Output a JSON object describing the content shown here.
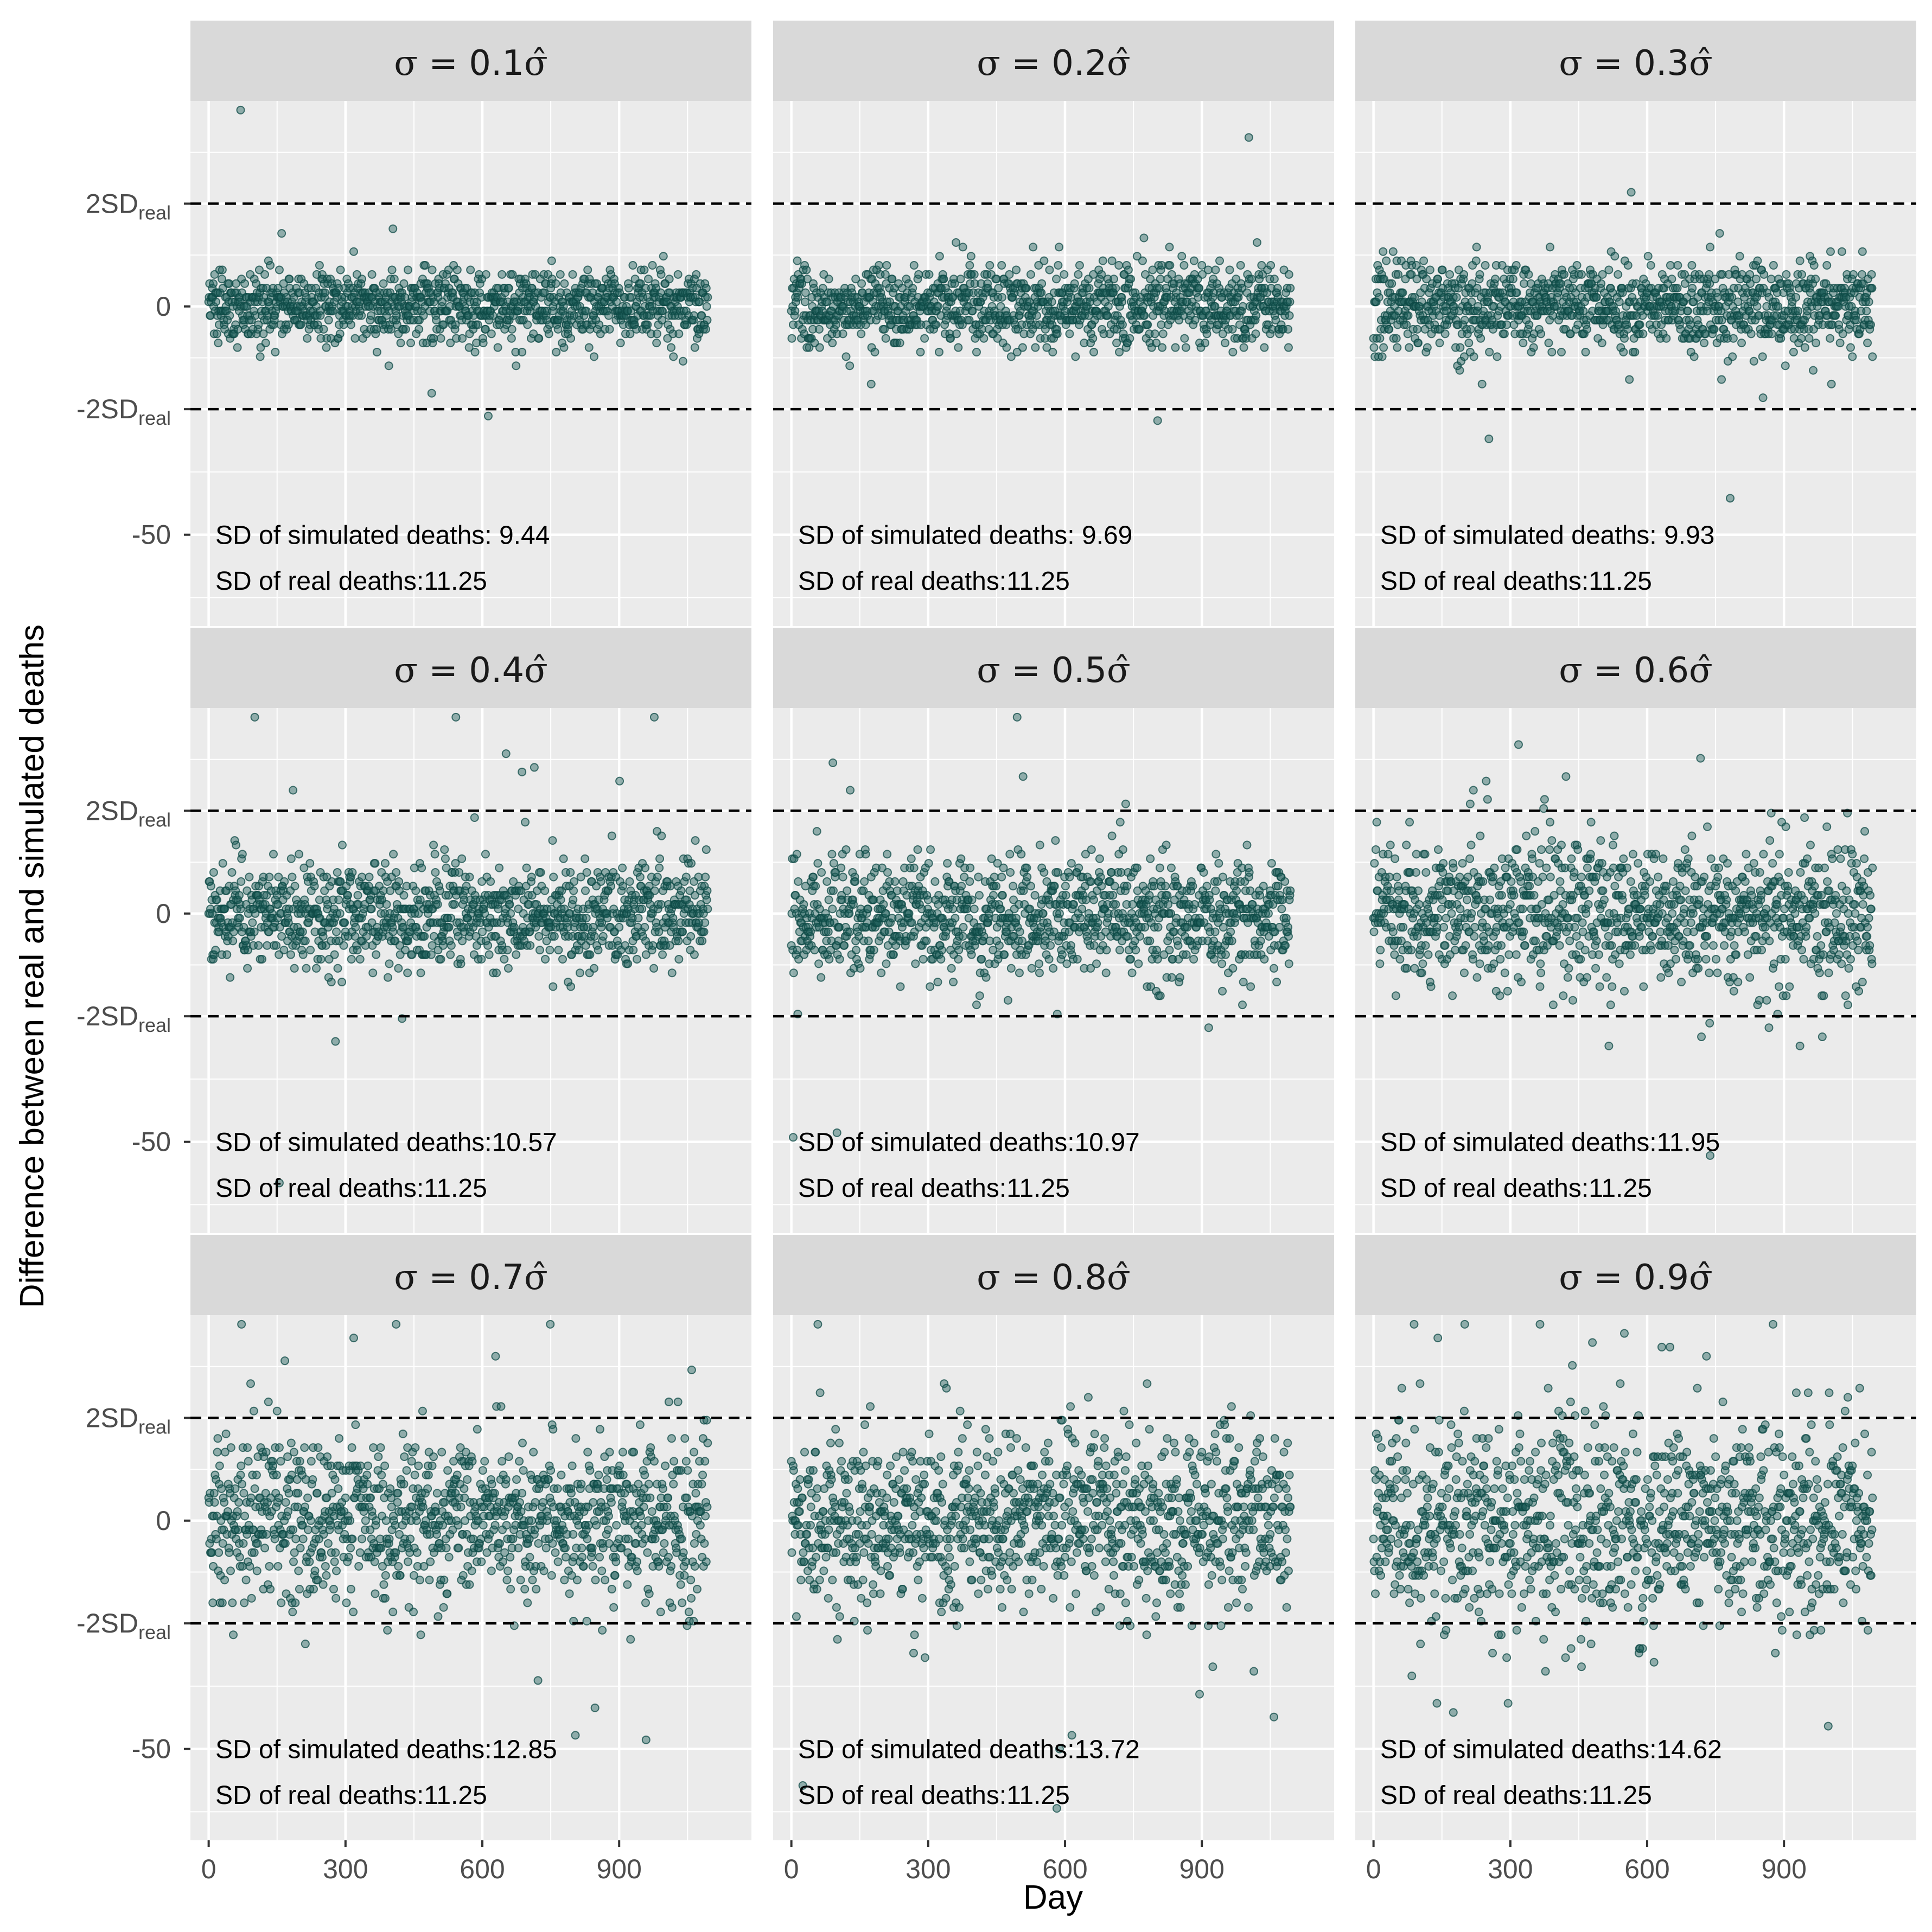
{
  "chart_data": {
    "type": "scatter",
    "layout": "facet-grid-3x3",
    "xlabel": "Day",
    "ylabel": "Difference between real and simulated deaths",
    "xlim": [
      -40,
      1190
    ],
    "ylim": [
      -70,
      45
    ],
    "x_ticks": [
      0,
      300,
      600,
      900
    ],
    "y_ticks": [
      {
        "value": 22.5,
        "base": "2SD",
        "sub": "real"
      },
      {
        "value": 0,
        "base": "0",
        "sub": ""
      },
      {
        "value": -22.5,
        "base": "-2SD",
        "sub": "real"
      },
      {
        "value": -50,
        "base": "-50",
        "sub": ""
      }
    ],
    "reference_lines": [
      22.5,
      -22.5
    ],
    "reference_line_style": "dashed",
    "sd_real": 11.25,
    "n_days": 1095,
    "grid": true,
    "point_color": "#1f5f5b",
    "panel_background": "#ebebeb",
    "strip_background": "#d9d9d9",
    "panels": [
      {
        "strip_prefix": "σ = ",
        "strip_value": "0.1",
        "strip_suffix": "σ̂",
        "sd_sim_label": "SD of simulated deaths: 9.44",
        "sd_real_label": "SD of real deaths:11.25",
        "sd_sim": 9.44
      },
      {
        "strip_prefix": "σ = ",
        "strip_value": "0.2",
        "strip_suffix": "σ̂",
        "sd_sim_label": "SD of simulated deaths: 9.69",
        "sd_real_label": "SD of real deaths:11.25",
        "sd_sim": 9.69
      },
      {
        "strip_prefix": "σ = ",
        "strip_value": "0.3",
        "strip_suffix": "σ̂",
        "sd_sim_label": "SD of simulated deaths: 9.93",
        "sd_real_label": "SD of real deaths:11.25",
        "sd_sim": 9.93
      },
      {
        "strip_prefix": "σ = ",
        "strip_value": "0.4",
        "strip_suffix": "σ̂",
        "sd_sim_label": "SD of simulated deaths:10.57",
        "sd_real_label": "SD of real deaths:11.25",
        "sd_sim": 10.57
      },
      {
        "strip_prefix": "σ = ",
        "strip_value": "0.5",
        "strip_suffix": "σ̂",
        "sd_sim_label": "SD of simulated deaths:10.97",
        "sd_real_label": "SD of real deaths:11.25",
        "sd_sim": 10.97
      },
      {
        "strip_prefix": "σ = ",
        "strip_value": "0.6",
        "strip_suffix": "σ̂",
        "sd_sim_label": "SD of simulated deaths:11.95",
        "sd_real_label": "SD of real deaths:11.25",
        "sd_sim": 11.95
      },
      {
        "strip_prefix": "σ = ",
        "strip_value": "0.7",
        "strip_suffix": "σ̂",
        "sd_sim_label": "SD of simulated deaths:12.85",
        "sd_real_label": "SD of real deaths:11.25",
        "sd_sim": 12.85
      },
      {
        "strip_prefix": "σ = ",
        "strip_value": "0.8",
        "strip_suffix": "σ̂",
        "sd_sim_label": "SD of simulated deaths:13.72",
        "sd_real_label": "SD of real deaths:11.25",
        "sd_sim": 13.72
      },
      {
        "strip_prefix": "σ = ",
        "strip_value": "0.9",
        "strip_suffix": "σ̂",
        "sd_sim_label": "SD of simulated deaths:14.62",
        "sd_real_label": "SD of real deaths:11.25",
        "sd_sim": 14.62
      }
    ]
  }
}
